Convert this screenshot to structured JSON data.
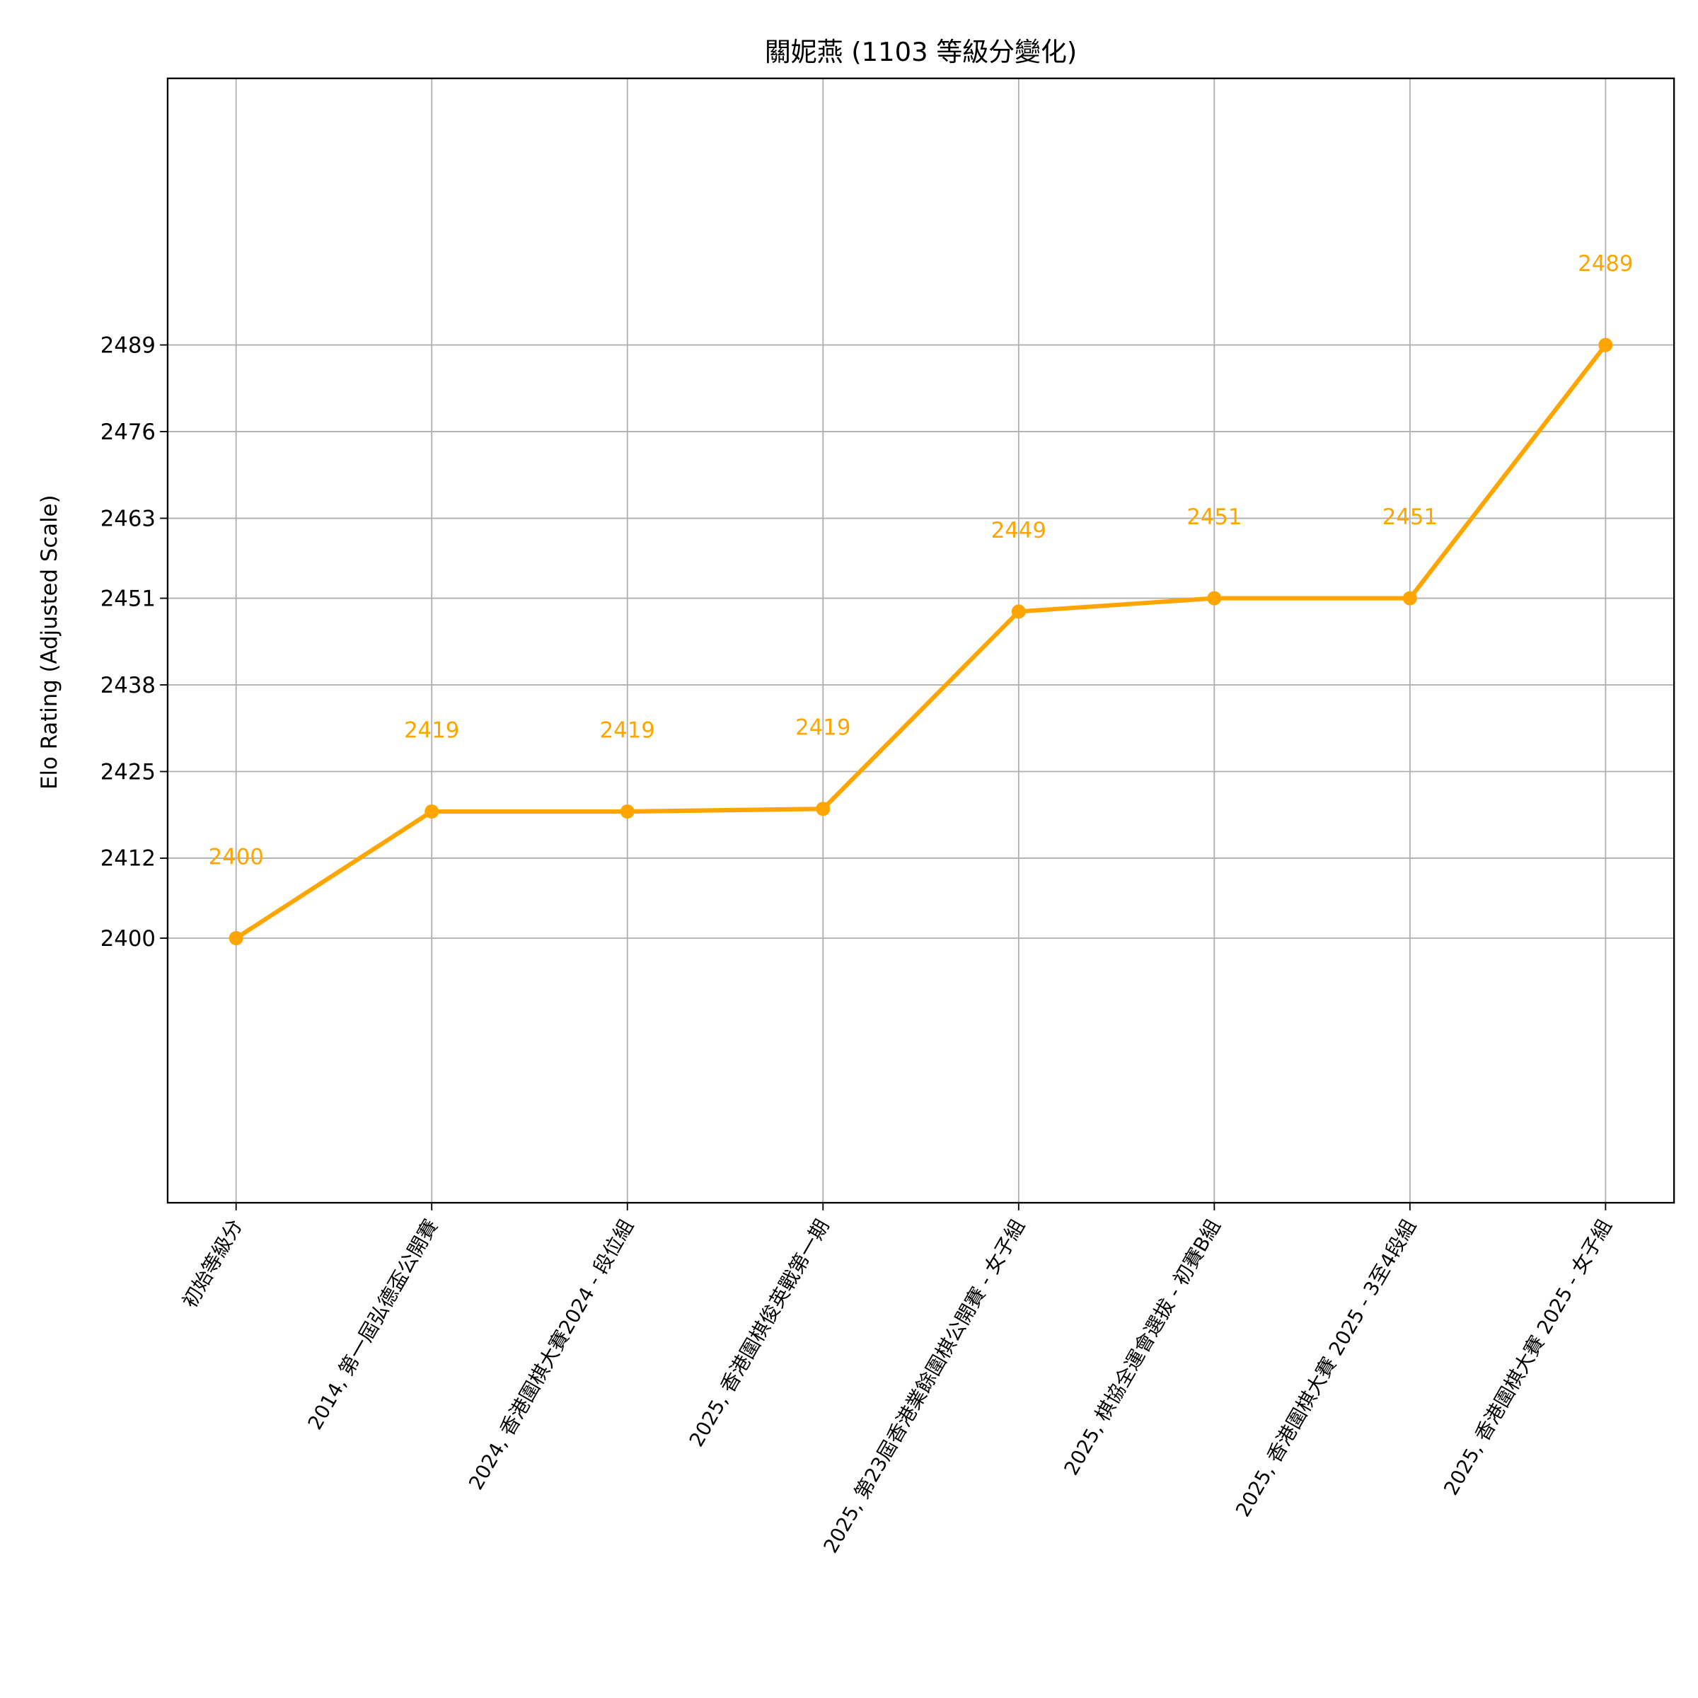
{
  "chart_data": {
    "type": "line",
    "title": "關妮燕 (1103 等級分變化)",
    "xlabel": "",
    "ylabel": "Elo Rating (Adjusted Scale)",
    "categories": [
      "初始等級分",
      "2014, 第一屆弘德盃公開賽",
      "2024, 香港圍棋大賽2024 - 段位組",
      "2025, 香港圍棋俊英戰第一期",
      "2025, 第23屆香港業餘圍棋公開賽 - 女子組",
      "2025, 棋協全運會選拔 - 初賽B組",
      "2025, 香港圍棋大賽 2025 - 3至4段組",
      "2025, 香港圍棋大賽 2025 - 女子組"
    ],
    "values": [
      2400,
      2419,
      2419,
      2419.4,
      2449,
      2451,
      2451,
      2489
    ],
    "data_labels": [
      "2400",
      "2419",
      "2419",
      "2419",
      "2449",
      "2451",
      "2451",
      "2489"
    ],
    "yticks": [
      2400,
      2412,
      2425,
      2438,
      2451,
      2463,
      2476,
      2489
    ],
    "ylim": [
      2360.3,
      2529
    ],
    "grid": true,
    "color": "#FFA500"
  }
}
